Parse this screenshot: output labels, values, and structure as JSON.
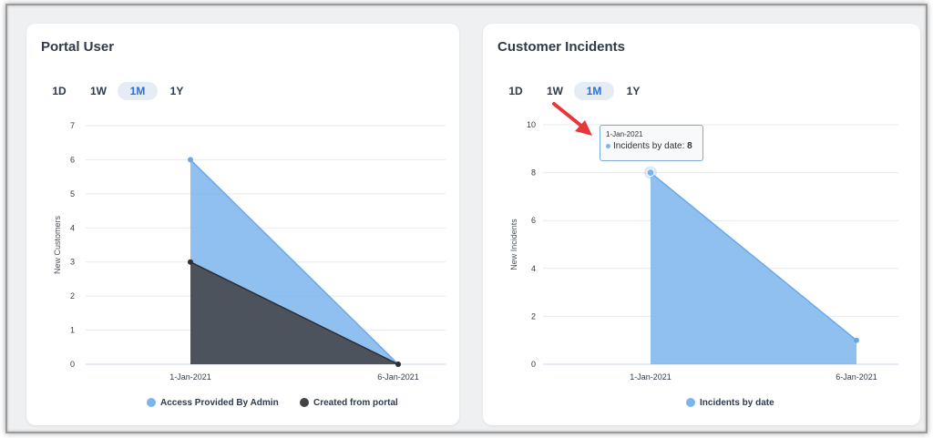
{
  "colors": {
    "blue": "#7cb5ec",
    "blue_line": "#6aa8e8",
    "dark": "#434348",
    "accent": "#2d6fd6",
    "arrow": "#e8373b"
  },
  "tabs": [
    "1D",
    "1W",
    "1M",
    "1Y"
  ],
  "active_tab": "1M",
  "left_panel": {
    "title": "Portal User",
    "tabs": [
      "1D",
      "1W",
      "1M",
      "1Y"
    ],
    "chart_data": {
      "type": "area",
      "x": [
        "1-Jan-2021",
        "6-Jan-2021"
      ],
      "ylabel": "New Customers",
      "ylim": [
        0,
        7
      ],
      "yticks": [
        0,
        1,
        2,
        3,
        4,
        5,
        6,
        7
      ],
      "grid": true,
      "legend_position": "bottom",
      "series": [
        {
          "name": "Access Provided By Admin",
          "values": [
            6,
            0
          ],
          "color": "#7cb5ec"
        },
        {
          "name": "Created from portal",
          "values": [
            3,
            0
          ],
          "color": "#434348"
        }
      ]
    }
  },
  "right_panel": {
    "title": "Customer Incidents",
    "tabs": [
      "1D",
      "1W",
      "1M",
      "1Y"
    ],
    "chart_data": {
      "type": "area",
      "x": [
        "1-Jan-2021",
        "6-Jan-2021"
      ],
      "ylabel": "New Incidents",
      "ylim": [
        0,
        10
      ],
      "yticks": [
        0,
        2,
        4,
        6,
        8,
        10
      ],
      "grid": true,
      "legend_position": "bottom",
      "series": [
        {
          "name": "Incidents by date",
          "values": [
            8,
            1
          ],
          "color": "#7cb5ec"
        }
      ]
    },
    "tooltip": {
      "date": "1-Jan-2021",
      "label": "Incidents by date:",
      "value": "8"
    }
  }
}
